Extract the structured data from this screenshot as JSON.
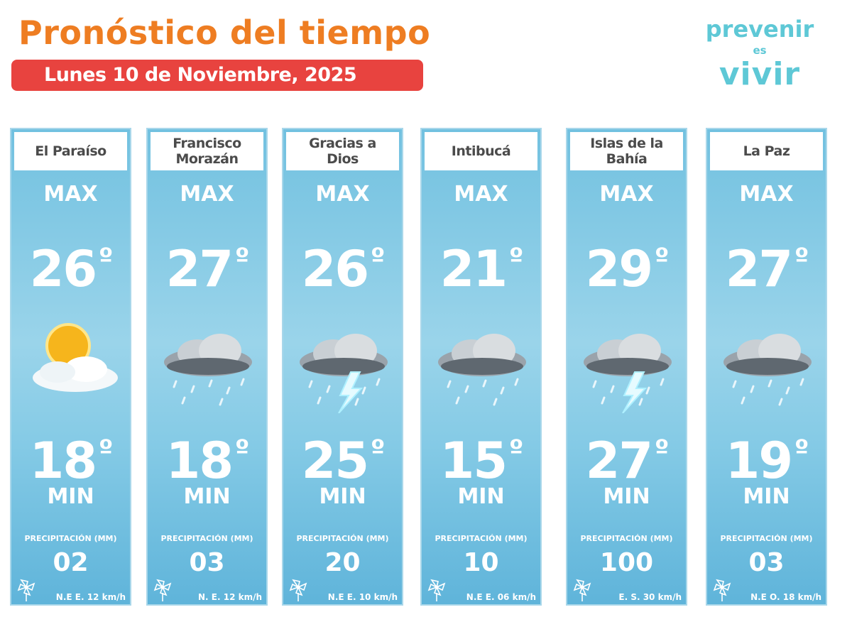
{
  "header": {
    "title": "Pronóstico del tiempo",
    "date": "Lunes 10 de  Noviembre, 2025"
  },
  "logo": {
    "line1": "prevenir",
    "line2": "es",
    "line3": "vivir"
  },
  "labels": {
    "max": "MAX",
    "min": "MIN",
    "precipitation": "PRECIPITACIÓN (MM)",
    "degree": "º"
  },
  "regions": [
    {
      "name": "El Paraíso",
      "max": "26",
      "min": "18",
      "precipitation": "02",
      "wind": "N.E  E. 12 km/h",
      "icon": "sun-cloud"
    },
    {
      "name": "Francisco Morazán",
      "max": "27",
      "min": "18",
      "precipitation": "03",
      "wind": "N.  E. 12 km/h",
      "icon": "rain-cloud"
    },
    {
      "name": "Gracias a Dios",
      "max": "26",
      "min": "25",
      "precipitation": "20",
      "wind": "N.E  E. 10 km/h",
      "icon": "thunderstorm"
    },
    {
      "name": "Intibucá",
      "max": "21",
      "min": "15",
      "precipitation": "10",
      "wind": "N.E  E.  06 km/h",
      "icon": "rain-cloud"
    },
    {
      "name": "Islas de la Bahía",
      "max": "29",
      "min": "27",
      "precipitation": "100",
      "wind": "E. S. 30 km/h",
      "icon": "thunderstorm"
    },
    {
      "name": "La Paz",
      "max": "27",
      "min": "19",
      "precipitation": "03",
      "wind": "N.E   O. 18 km/h",
      "icon": "rain-cloud"
    }
  ],
  "colors": {
    "title": "#ee7d22",
    "date_bar": "#e8433f",
    "logo": "#5ec8d6",
    "panel": "#86cbe6"
  }
}
